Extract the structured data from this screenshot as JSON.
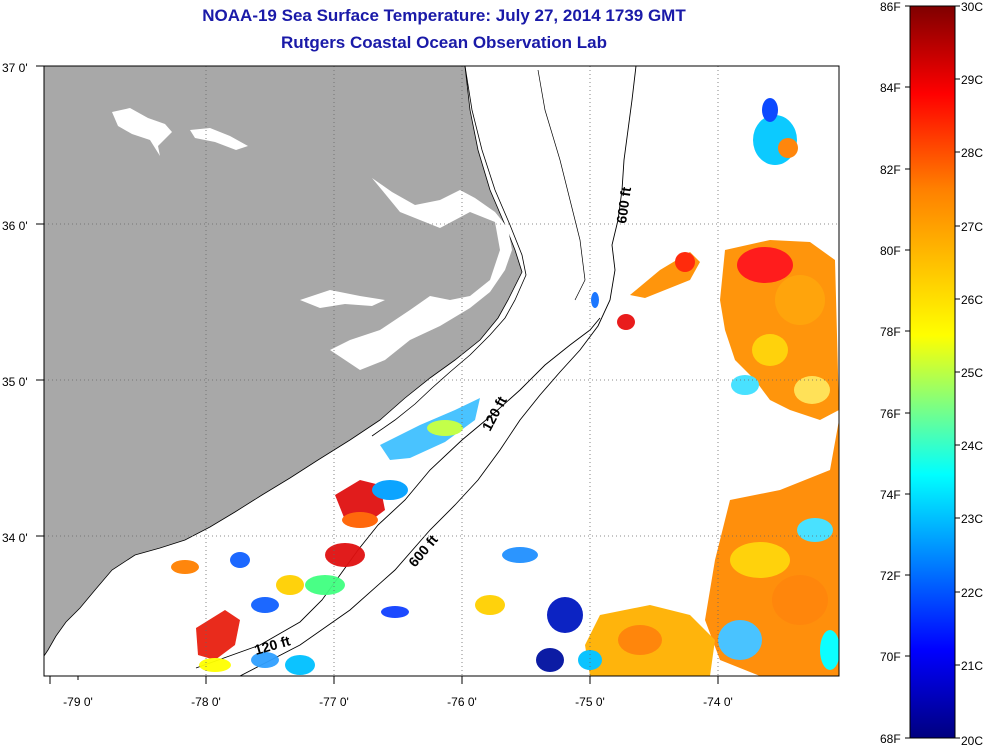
{
  "title": "NOAA-19 Sea Surface Temperature:  July 27, 2014 1739 GMT",
  "subtitle": "Rutgers Coastal Ocean Observation Lab",
  "axes": {
    "lon_labels": [
      "-79 0'",
      "-78 0'",
      "-77 0'",
      "-76 0'",
      "-75 0'",
      "-74 0'"
    ],
    "lat_labels": [
      "37 0'",
      "36 0'",
      "35 0'",
      "34 0'"
    ]
  },
  "isobaths": {
    "label_120_a": "120 ft",
    "label_120_b": "120 ft",
    "label_600_a": "600 ft",
    "label_600_b": "600 ft"
  },
  "colorbar": {
    "fahrenheit": [
      "86F",
      "84F",
      "82F",
      "80F",
      "78F",
      "76F",
      "74F",
      "72F",
      "70F",
      "68F"
    ],
    "celsius": [
      "30C",
      "29C",
      "28C",
      "27C",
      "26C",
      "25C",
      "24C",
      "23C",
      "22C",
      "21C",
      "20C"
    ],
    "colors": [
      "#00007f",
      "#0000ff",
      "#0080ff",
      "#00ffff",
      "#80ff80",
      "#ffff00",
      "#ff8000",
      "#ff0000",
      "#7f0000"
    ]
  },
  "colors": {
    "title": "#1a1aa8",
    "land": "#a8a8a8",
    "ocean_no_data": "#ffffff"
  }
}
